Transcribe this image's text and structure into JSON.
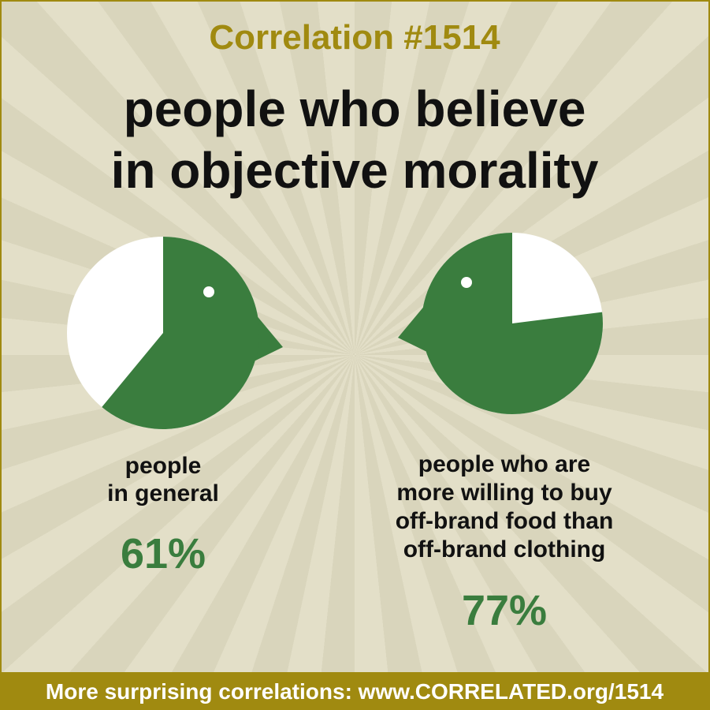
{
  "header": {
    "title": "Correlation #1514",
    "subtitle": [
      "people who believe",
      "in objective morality"
    ]
  },
  "chart_data": [
    {
      "type": "pie",
      "label": [
        "people",
        "in general"
      ],
      "values": [
        61
      ],
      "value_labels": [
        "61%"
      ],
      "color": "#3a7d3e",
      "direction": "clockwise"
    },
    {
      "type": "pie",
      "label": [
        "people who are",
        "more willing to buy",
        "off-brand food than",
        "off-brand clothing"
      ],
      "values": [
        77
      ],
      "value_labels": [
        "77%"
      ],
      "color": "#3a7d3e",
      "direction": "counterclockwise"
    }
  ],
  "footer": "More surprising correlations: www.CORRELATED.org/1514"
}
